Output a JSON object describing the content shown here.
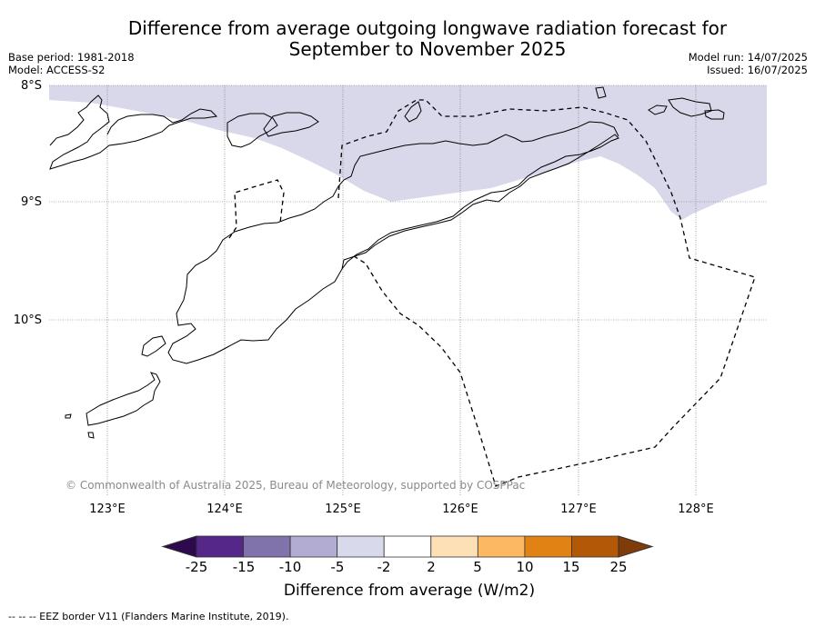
{
  "header": {
    "title_line1": "Difference from average outgoing longwave radiation forecast for",
    "title_line2": "September to November 2025",
    "base_period": "Base period: 1981-2018",
    "model": "Model: ACCESS-S2",
    "model_run": "Model run: 14/07/2025",
    "issued": "Issued: 16/07/2025"
  },
  "map": {
    "lat_labels": [
      "8°S",
      "9°S",
      "10°S"
    ],
    "lon_labels": [
      "123°E",
      "124°E",
      "125°E",
      "126°E",
      "127°E",
      "128°E"
    ],
    "copyright": "© Commonwealth of Australia 2025, Bureau of Meteorology, supported by COSPPac",
    "shaded_category": "-5 to -2",
    "shaded_color": "#d8d8ea"
  },
  "colorbar": {
    "labels": [
      "-25",
      "-15",
      "-10",
      "-5",
      "-2",
      "2",
      "5",
      "10",
      "15",
      "25"
    ],
    "colors": [
      "#2d0a4d",
      "#542788",
      "#8073ac",
      "#b2abd2",
      "#d8daeb",
      "#ffffff",
      "#fee0b6",
      "#fdb863",
      "#e08214",
      "#b35806",
      "#7f3b08"
    ],
    "title": "Difference from average (W/m2)"
  },
  "footnote": "--  --  -- EEZ border V11 (Flanders Marine Institute, 2019)."
}
